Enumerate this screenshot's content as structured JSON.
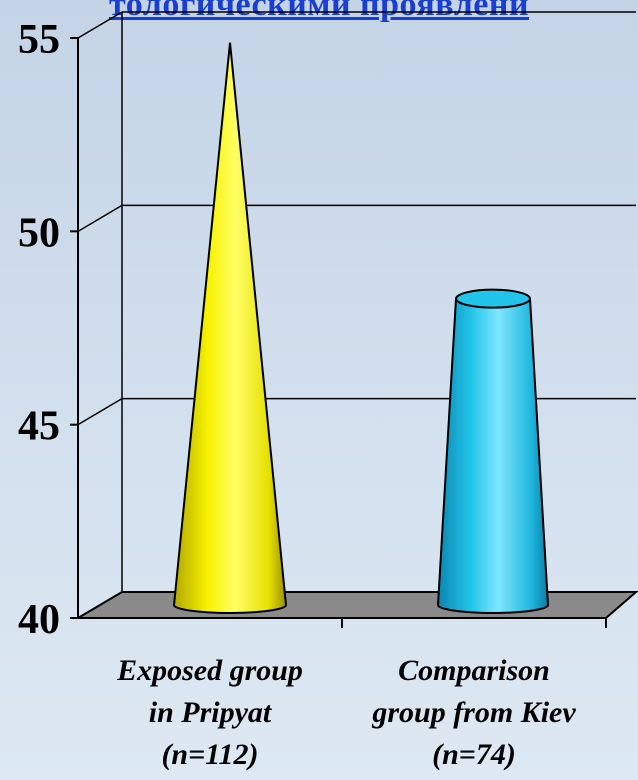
{
  "title": "тологическими проявлени",
  "chart_data": {
    "type": "bar",
    "shape": "cone",
    "categories": [
      [
        "Exposed group",
        "in Pripyat",
        "(n=112)"
      ],
      [
        "Comparison",
        "group from Kiev",
        "(n=74)"
      ]
    ],
    "values": [
      54.8,
      48.0
    ],
    "colors": [
      "#f5f000",
      "#22c4ea"
    ],
    "ylim": [
      40,
      55
    ],
    "yticks": [
      "40",
      "45",
      "50",
      "55"
    ],
    "grid": true,
    "legend": "none",
    "xlabel": "",
    "ylabel": ""
  }
}
